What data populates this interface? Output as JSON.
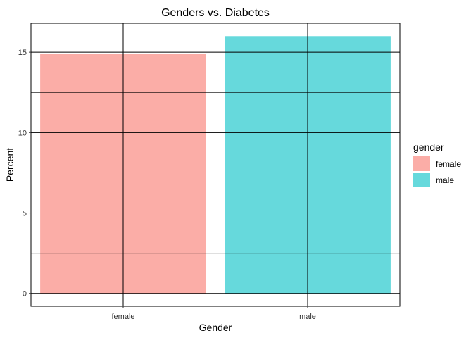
{
  "chart_data": {
    "type": "bar",
    "title": "Genders vs. Diabetes",
    "xlabel": "Gender",
    "ylabel": "Percent",
    "categories": [
      "female",
      "male"
    ],
    "values": [
      14.9,
      16.0
    ],
    "colors": [
      "#F8766D",
      "#00BFC4"
    ],
    "bar_opacity": 0.6,
    "ylim": [
      -0.8,
      16.8
    ],
    "yticks": [
      0,
      5,
      10,
      15
    ],
    "ytick_labels": [
      "0",
      "5",
      "10",
      "15"
    ],
    "grid": true,
    "legend": {
      "title": "gender",
      "position": "right",
      "entries": [
        "female",
        "male"
      ]
    }
  }
}
